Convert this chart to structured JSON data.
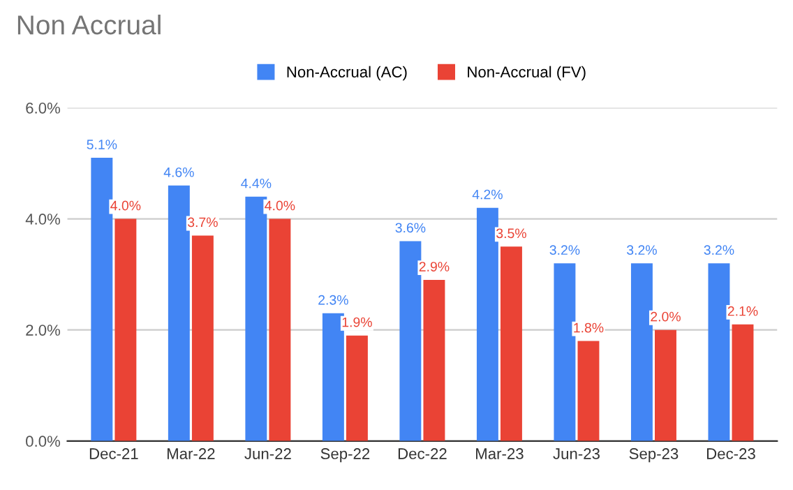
{
  "chart_data": {
    "type": "bar",
    "title": "Non Accrual",
    "categories": [
      "Dec-21",
      "Mar-22",
      "Jun-22",
      "Sep-22",
      "Dec-22",
      "Mar-23",
      "Jun-23",
      "Sep-23",
      "Dec-23"
    ],
    "series": [
      {
        "name": "Non-Accrual (AC)",
        "color": "#4285f4",
        "values": [
          5.1,
          4.6,
          4.4,
          2.3,
          3.6,
          4.2,
          3.2,
          3.2,
          3.2
        ],
        "value_labels": [
          "5.1%",
          "4.6%",
          "4.4%",
          "2.3%",
          "3.6%",
          "4.2%",
          "3.2%",
          "3.2%",
          "3.2%"
        ]
      },
      {
        "name": "Non-Accrual (FV)",
        "color": "#ea4335",
        "values": [
          4.0,
          3.7,
          4.0,
          1.9,
          2.9,
          3.5,
          1.8,
          2.0,
          2.1
        ],
        "value_labels": [
          "4.0%",
          "3.7%",
          "4.0%",
          "1.9%",
          "2.9%",
          "3.5%",
          "1.8%",
          "2.0%",
          "2.1%"
        ]
      }
    ],
    "ylim": [
      0,
      6
    ],
    "yticks": [
      {
        "value": 0,
        "label": "0.0%"
      },
      {
        "value": 2,
        "label": "2.0%"
      },
      {
        "value": 4,
        "label": "4.0%"
      },
      {
        "value": 6,
        "label": "6.0%"
      }
    ],
    "grid": "y",
    "legend": "top"
  }
}
